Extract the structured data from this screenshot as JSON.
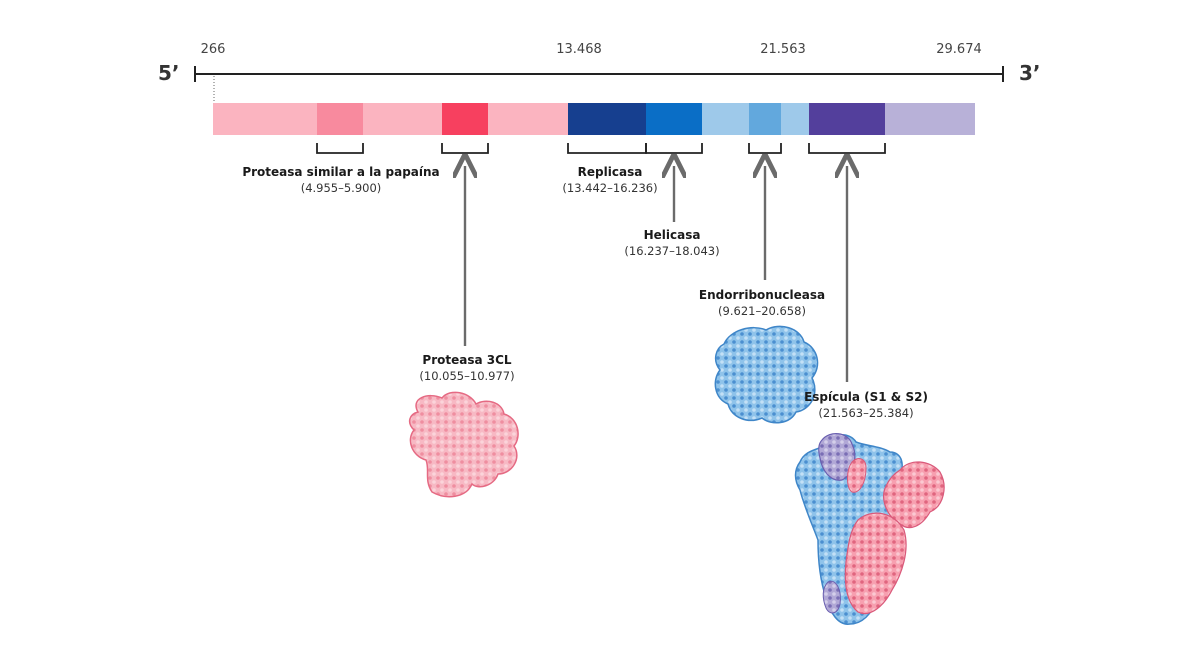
{
  "ends": {
    "left": "5’",
    "right": "3’"
  },
  "ticks": [
    "266",
    "13.468",
    "21.563",
    "29.674"
  ],
  "labels": {
    "papain": {
      "name": "Proteasa similar a la papaína",
      "range": "(4.955–5.900)"
    },
    "protease3cl": {
      "name": "Proteasa 3CL",
      "range": "(10.055–10.977)"
    },
    "replicase": {
      "name": "Replicasa",
      "range": "(13.442–16.236)"
    },
    "helicase": {
      "name": "Helicasa",
      "range": "(16.237–18.043)"
    },
    "endoribonuclease": {
      "name": "Endorribonucleasa",
      "range": "(9.621–20.658)"
    },
    "spike": {
      "name": "Espícula (S1 & S2)",
      "range": "(21.563–25.384)"
    }
  },
  "colors": {
    "pink_light": "#fbb4c0",
    "pink_mid": "#f88a9e",
    "pink_strong": "#f7405f",
    "navy": "#163f8f",
    "blue": "#0a6ec6",
    "blue_light": "#9ec9ea",
    "blue_mid": "#62a8dd",
    "purple": "#533f9c",
    "lavender": "#b8b1d8",
    "arrow": "#6b6b6b"
  },
  "icons": {
    "protease3cl": "protein-structure-3cl-icon",
    "endoribonuclease": "protein-structure-endoribonuclease-icon",
    "spike": "protein-structure-spike-icon"
  }
}
